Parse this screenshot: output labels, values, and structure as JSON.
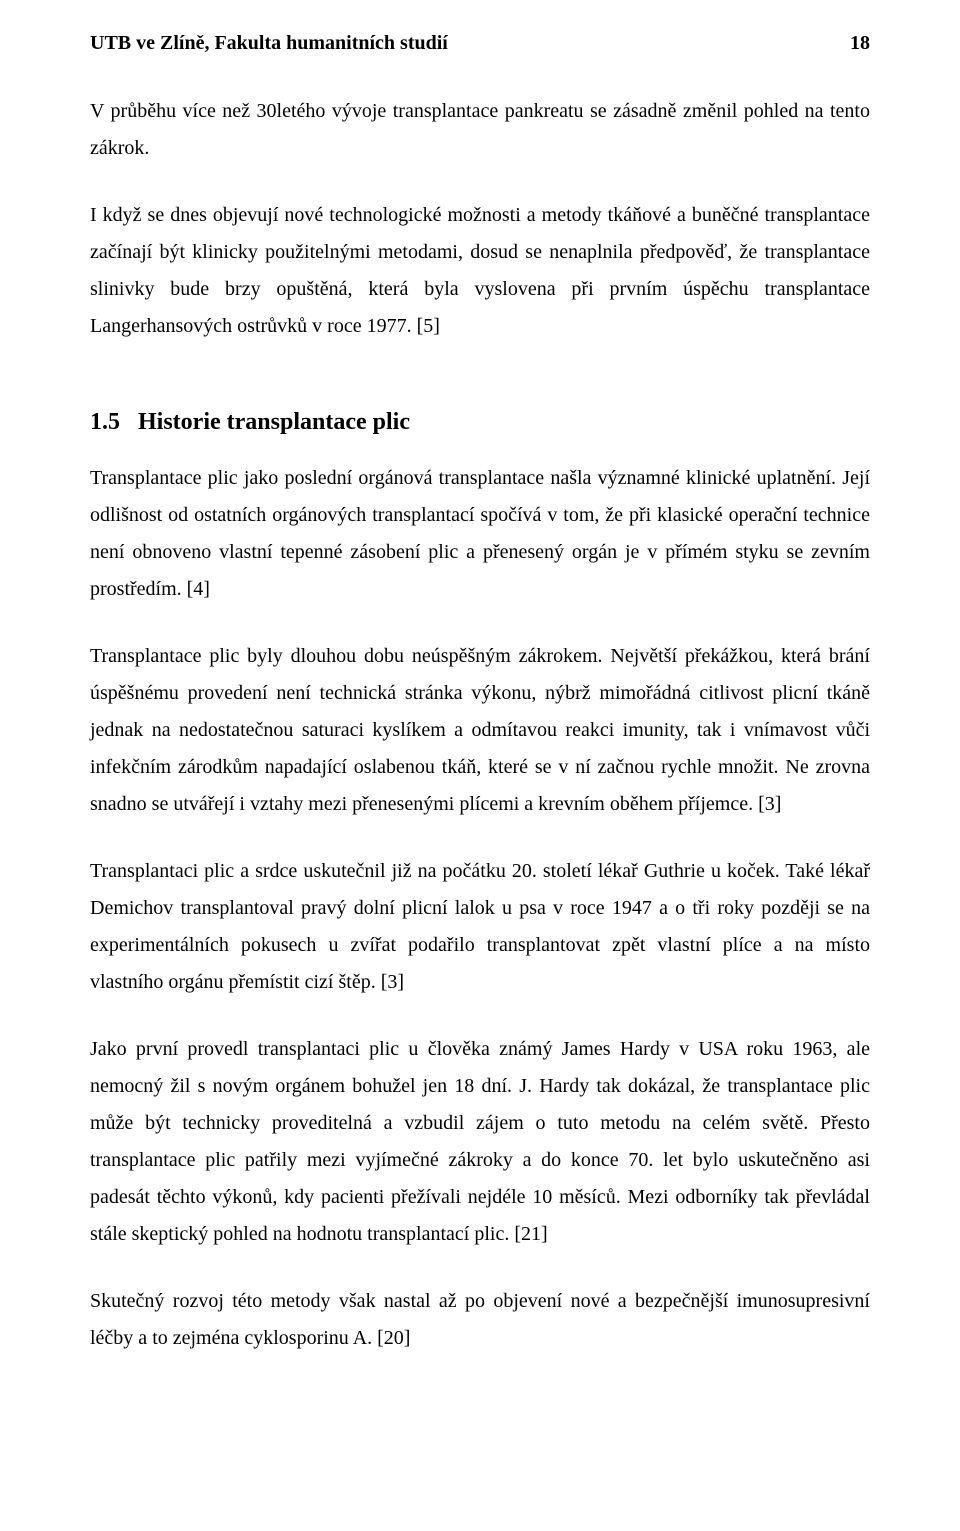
{
  "header": {
    "left": "UTB ve Zlíně, Fakulta humanitních studií",
    "page_number": "18"
  },
  "paragraphs": {
    "p1": "V průběhu více než 30letého vývoje transplantace pankreatu se zásadně změnil pohled na tento zákrok.",
    "p2": "I když se dnes objevují nové technologické možnosti a metody tkáňové a buněčné transplantace začínají být klinicky použitelnými metodami, dosud se nenaplnila předpověď, že transplantace slinivky bude brzy opuštěná, která byla vyslovena při prvním úspěchu transplantace Langerhansových ostrůvků v roce 1977. [5]",
    "p3": "Transplantace plic jako poslední orgánová transplantace našla významné klinické uplatnění. Její odlišnost od ostatních orgánových transplantací spočívá v tom, že při klasické operační technice není obnoveno vlastní tepenné zásobení plic a přenesený orgán je v přímém styku se zevním prostředím. [4]",
    "p4": "Transplantace plic byly dlouhou dobu neúspěšným zákrokem. Největší překážkou, která brání úspěšnému provedení není technická stránka výkonu, nýbrž mimořádná citlivost plicní tkáně jednak na nedostatečnou saturaci kyslíkem a odmítavou reakci imunity, tak i vnímavost vůči infekčním zárodkům napadající oslabenou tkáň, které se v ní začnou rychle množit. Ne zrovna snadno se utvářejí i vztahy mezi přenesenými plícemi a krevním oběhem příjemce. [3]",
    "p5": "Transplantaci plic a srdce uskutečnil již na počátku 20. století lékař Guthrie u koček. Také lékař Demichov transplantoval pravý dolní plicní lalok u psa v roce 1947 a o tři roky později se na experimentálních pokusech u zvířat podařilo transplantovat zpět vlastní plíce a na místo vlastního orgánu přemístit cizí štěp. [3]",
    "p6": "Jako první provedl transplantaci plic u člověka známý James Hardy v USA roku 1963, ale nemocný žil s novým orgánem bohužel jen 18 dní. J. Hardy tak dokázal, že transplantace plic může být technicky proveditelná a vzbudil zájem o tuto metodu na celém světě. Přesto transplantace plic patřily mezi vyjímečné zákroky a do konce 70. let bylo uskutečněno asi padesát těchto výkonů, kdy pacienti přežívali nejdéle 10 měsíců. Mezi odborníky tak převládal stále skeptický pohled na hodnotu transplantací plic. [21]",
    "p7": "Skutečný rozvoj této metody však nastal až po objevení nové a bezpečnější imunosupresivní léčby a to zejména cyklosporinu A. [20]"
  },
  "section": {
    "number": "1.5",
    "title": "Historie transplantace plic"
  }
}
